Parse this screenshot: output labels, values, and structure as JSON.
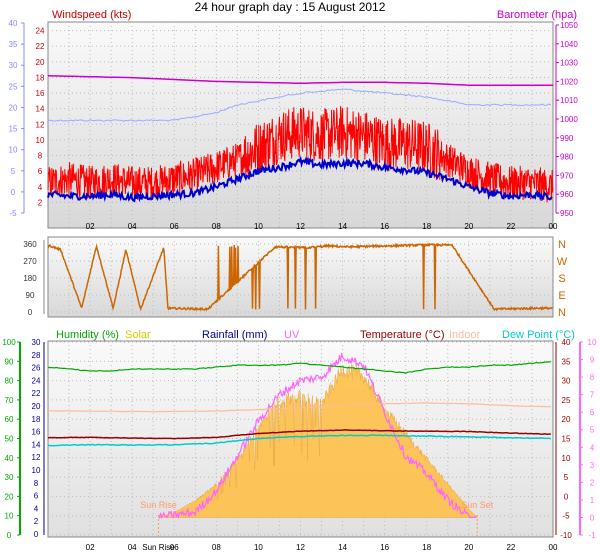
{
  "title": "24 hour graph day : 15 August 2012",
  "colors": {
    "wind_axis": "#8888ff",
    "wind_dark": "#cc0000",
    "baro": "#cc00cc",
    "gust": "#ff0000",
    "avg_wind": "#0000cc",
    "baro_line": "#cc00cc",
    "wind_dir": "#cc6600",
    "humidity": "#00aa00",
    "solar": "#cccc00",
    "rain": "#000099",
    "uv": "#ff66ff",
    "temperature": "#990000",
    "indoor": "#ffbb99",
    "dewpoint": "#00cccc",
    "sun_fill": "#ffc04a",
    "sun_text": "#ff9966",
    "grid": "#bbbbbb"
  },
  "chart_data": [
    {
      "type": "line",
      "panel": "wind",
      "labels": {
        "left": "Windspeed (kts)",
        "right": "Barometer (hpa)"
      },
      "x_ticks": [
        "02",
        "04",
        "06",
        "08",
        "10",
        "12",
        "14",
        "16",
        "18",
        "20",
        "22",
        "00"
      ],
      "axes": {
        "outer_left": [
          -5,
          0,
          5,
          10,
          15,
          20,
          25,
          30,
          35,
          40
        ],
        "inner_left": [
          2,
          4,
          6,
          8,
          10,
          12,
          14,
          16,
          18,
          20,
          22,
          24
        ],
        "right": [
          950,
          960,
          970,
          980,
          990,
          1000,
          1010,
          1020,
          1030,
          1040,
          1050
        ]
      },
      "grid": true,
      "series": [
        {
          "name": "",
          "unit": "kts",
          "x_hours": [
            0,
            1,
            2,
            3,
            4,
            5,
            6,
            7,
            8,
            9,
            10,
            11,
            12,
            13,
            14,
            15,
            16,
            17,
            18,
            19,
            20,
            21,
            22,
            23,
            24
          ],
          "values": [
            4.5,
            5,
            4.5,
            5,
            4.5,
            4.5,
            5,
            5.5,
            6.5,
            7.5,
            9,
            10.5,
            11,
            10.5,
            11,
            10.5,
            9.5,
            9.5,
            9,
            7.5,
            6,
            5,
            4.5,
            4.5,
            4
          ]
        },
        {
          "name": "",
          "unit": "kts",
          "x_hours": [
            0,
            1,
            2,
            3,
            4,
            5,
            6,
            7,
            8,
            9,
            10,
            11,
            12,
            13,
            14,
            15,
            16,
            17,
            18,
            19,
            20,
            21,
            22,
            23,
            24
          ],
          "values": [
            3,
            2.8,
            2.8,
            3,
            2.6,
            2.8,
            3,
            3.2,
            4,
            5,
            6,
            6.5,
            7.2,
            6.8,
            7,
            7,
            6.5,
            6.2,
            5.8,
            5,
            4,
            3.2,
            2.8,
            3,
            2.6
          ]
        },
        {
          "name": "",
          "unit": "hpa",
          "x_hours": [
            0,
            2,
            4,
            6,
            8,
            10,
            12,
            14,
            16,
            18,
            20,
            22,
            24
          ],
          "values": [
            1023,
            1022.5,
            1022,
            1021,
            1020,
            1019.5,
            1019,
            1019.5,
            1019.5,
            1019,
            1018,
            1018,
            1018
          ]
        },
        {
          "name": "",
          "unit": "kts",
          "x_hours": [
            0,
            2,
            4,
            6,
            8,
            9,
            10,
            12,
            14,
            16,
            18,
            20,
            22,
            24
          ],
          "values": [
            12.5,
            12.5,
            12.5,
            12.5,
            13.5,
            14.5,
            15,
            16,
            16.5,
            16,
            15.5,
            14.5,
            14.5,
            14.5
          ]
        }
      ]
    },
    {
      "type": "line",
      "panel": "direction",
      "y_ticks": [
        0,
        90,
        180,
        270,
        360
      ],
      "compass_labels": [
        "N",
        "W",
        "S",
        "E",
        "N"
      ],
      "ylim": [
        0,
        360
      ],
      "grid": true,
      "series": [
        {
          "name": "",
          "unit": "deg",
          "x_hours": [
            0.1,
            0.6,
            1.6,
            2.3,
            3.1,
            3.7,
            4.4,
            5.5,
            5.7,
            7.6,
            10.8,
            12.3,
            13.3,
            14.3,
            17.9,
            19.2,
            21.2,
            23.2,
            24
          ],
          "values": [
            350,
            330,
            20,
            350,
            20,
            330,
            15,
            340,
            20,
            15,
            345,
            340,
            350,
            345,
            355,
            355,
            15,
            20,
            20
          ]
        }
      ]
    },
    {
      "type": "line",
      "panel": "climate",
      "labels": {
        "humidity": "Humidity (%)",
        "solar": "Solar",
        "rain": "Rainfall (mm)",
        "uv": "UV",
        "temperature": "Temperature (°C)",
        "indoor": "Indoor",
        "dewpoint": "Dew Point (°C)"
      },
      "x_ticks": [
        "02",
        "04",
        "Sun Rise",
        "06",
        "08",
        "10",
        "12",
        "14",
        "16",
        "18",
        "20",
        "22",
        "00"
      ],
      "sunrise_label": "Sun Rise",
      "sunset_label": "Sun Set",
      "sunrise_hour": 5.25,
      "sunset_hour": 20.4,
      "axes": {
        "humidity": [
          0,
          10,
          20,
          30,
          40,
          50,
          60,
          70,
          80,
          90,
          100
        ],
        "rain": [
          0,
          2,
          4,
          6,
          8,
          10,
          12,
          14,
          16,
          18,
          20,
          22,
          24,
          26,
          28,
          30
        ],
        "temperature": [
          -10,
          -5,
          0,
          5,
          10,
          15,
          20,
          25,
          30,
          35,
          40
        ],
        "uv": [
          -1,
          0,
          1,
          2,
          3,
          4,
          5,
          6,
          7,
          8,
          9,
          10
        ]
      },
      "grid": true,
      "series": [
        {
          "name": "Humidity",
          "unit": "%",
          "x_hours": [
            0,
            1,
            2,
            3,
            4,
            5,
            6,
            7,
            8,
            9,
            10,
            11,
            12,
            13,
            14,
            15,
            16,
            17,
            18,
            19,
            20,
            21,
            22,
            23,
            24
          ],
          "values": [
            87,
            86,
            85,
            85,
            86,
            86,
            86,
            86,
            87,
            88,
            88,
            88,
            89,
            88,
            87,
            86,
            85,
            84,
            86,
            87,
            87,
            88,
            88,
            89,
            90
          ]
        },
        {
          "name": "Temperature",
          "unit": "°C",
          "x_hours": [
            0,
            2,
            4,
            6,
            8,
            10,
            12,
            14,
            16,
            18,
            20,
            22,
            24
          ],
          "values": [
            15.2,
            15.3,
            15.1,
            15.0,
            15.3,
            16.3,
            16.9,
            17.2,
            17.0,
            16.9,
            16.8,
            16.4,
            16.1
          ]
        },
        {
          "name": "Indoor",
          "unit": "°C",
          "x_hours": [
            0,
            2,
            4,
            6,
            8,
            10,
            12,
            14,
            16,
            18,
            20,
            22,
            24
          ],
          "values": [
            22.2,
            22.1,
            22.0,
            22.0,
            22.1,
            22.5,
            23.0,
            23.6,
            24.0,
            24.2,
            24.0,
            23.5,
            23.2
          ]
        },
        {
          "name": "Dew Point",
          "unit": "°C",
          "x_hours": [
            0,
            2,
            4,
            6,
            8,
            10,
            12,
            14,
            16,
            18,
            20,
            22,
            24
          ],
          "values": [
            13.2,
            13.4,
            13.3,
            13.4,
            13.8,
            15.0,
            15.5,
            15.8,
            15.8,
            15.6,
            15.4,
            15.2,
            15.0
          ]
        },
        {
          "name": "Solar",
          "unit": "",
          "x_hours": [
            5.25,
            6,
            7,
            8,
            9,
            10,
            11,
            12,
            13,
            14,
            15,
            16,
            17,
            18,
            19,
            20,
            20.4
          ],
          "values": [
            0,
            0.3,
            1,
            2,
            3.5,
            5.5,
            7,
            7.3,
            6.8,
            8.9,
            8.5,
            6.5,
            5,
            3.5,
            2,
            0.5,
            0
          ]
        },
        {
          "name": "UV",
          "unit": "",
          "x_hours": [
            5.25,
            7,
            8,
            9,
            10,
            11,
            12,
            13,
            14,
            15,
            16,
            17,
            18,
            19,
            20,
            20.4
          ],
          "values": [
            0,
            0.3,
            1.5,
            3.5,
            5.5,
            7,
            7.8,
            8,
            9.2,
            8.7,
            6,
            3.5,
            2.5,
            1,
            0,
            0
          ]
        }
      ]
    }
  ]
}
